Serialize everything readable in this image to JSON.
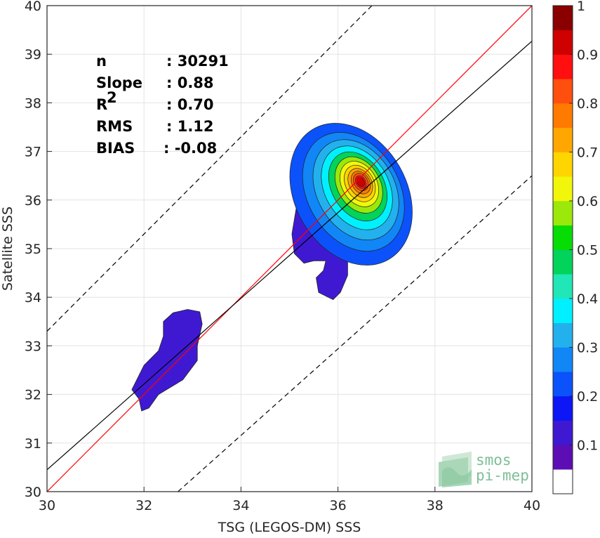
{
  "chart_data": {
    "type": "contour",
    "xlabel": "TSG (LEGOS-DM) SSS",
    "ylabel": "Satellite SSS",
    "xlim": [
      30,
      40
    ],
    "ylim": [
      30,
      40
    ],
    "xticks": [
      "30",
      "32",
      "34",
      "36",
      "38",
      "40"
    ],
    "yticks": [
      "30",
      "31",
      "32",
      "33",
      "34",
      "35",
      "36",
      "37",
      "38",
      "39",
      "40"
    ],
    "grid": true,
    "stats": [
      {
        "label": "n",
        "value": ": 30291"
      },
      {
        "label": "Slope",
        "value": ": 0.88"
      },
      {
        "label": "R",
        "sup": "2",
        "value": ": 0.70"
      },
      {
        "label": "RMS",
        "value": ": 1.12"
      },
      {
        "label": "BIAS",
        "value": ": -0.08"
      }
    ],
    "lines": [
      {
        "name": "one-to-one",
        "color": "#ff0000",
        "style": "solid",
        "points": [
          [
            30,
            30
          ],
          [
            40,
            40
          ]
        ]
      },
      {
        "name": "regression",
        "color": "#000000",
        "style": "solid",
        "points": [
          [
            30,
            30.45
          ],
          [
            40,
            39.27
          ]
        ]
      },
      {
        "name": "upper-bound",
        "color": "#000000",
        "style": "dashed",
        "points": [
          [
            30,
            33.3
          ],
          [
            37.7,
            41
          ]
        ]
      },
      {
        "name": "lower-bound",
        "color": "#000000",
        "style": "dashed",
        "points": [
          [
            32.7,
            30
          ],
          [
            40,
            36.5
          ]
        ]
      }
    ],
    "density_peak": {
      "x": 36.47,
      "y": 36.37,
      "value": 1.0
    },
    "colorbar": {
      "ticks": [
        "0.1",
        "0.2",
        "0.3",
        "0.4",
        "0.5",
        "0.6",
        "0.7",
        "0.8",
        "0.9",
        "1"
      ],
      "tick_values": [
        0.1,
        0.2,
        0.3,
        0.4,
        0.5,
        0.6,
        0.7,
        0.8,
        0.9,
        1.0
      ],
      "min": 0,
      "max": 1,
      "colors": [
        "#ffffff",
        "#5c0eb4",
        "#3f19d2",
        "#0d16f5",
        "#0b52fa",
        "#1186f7",
        "#22b1ed",
        "#00f0ff",
        "#21e6b7",
        "#02d35b",
        "#07dc05",
        "#9be80a",
        "#f2f60b",
        "#ffd500",
        "#ffa700",
        "#ff7a00",
        "#ff4f0e",
        "#ff0f0f",
        "#ce0000",
        "#8a0000"
      ]
    },
    "watermark": {
      "line1": "smos",
      "line2": "pi-mep"
    }
  }
}
